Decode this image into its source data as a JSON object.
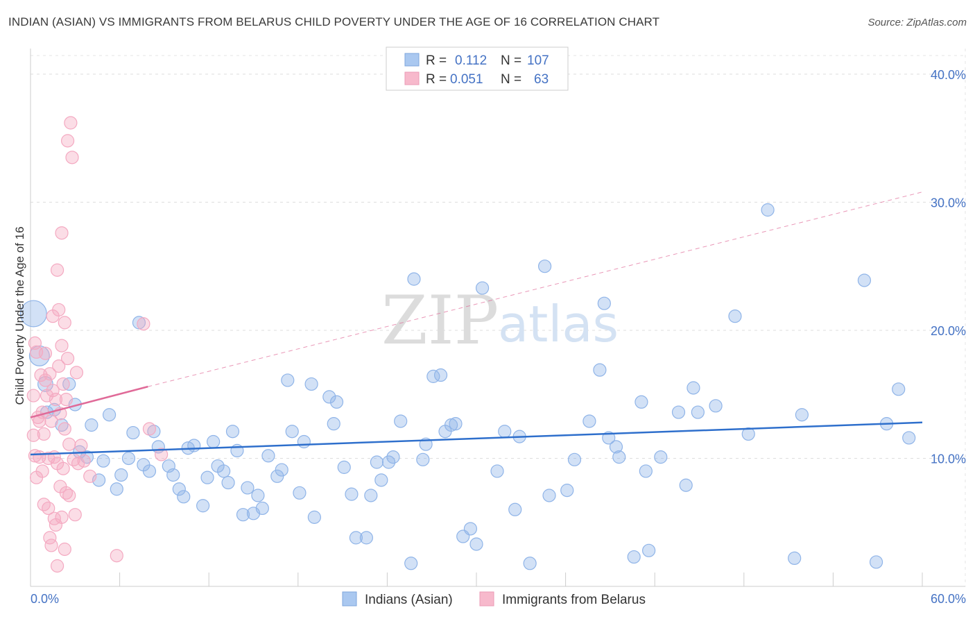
{
  "title": "INDIAN (ASIAN) VS IMMIGRANTS FROM BELARUS CHILD POVERTY UNDER THE AGE OF 16 CORRELATION CHART",
  "source": "Source: ZipAtlas.com",
  "watermark": {
    "zip": "ZIP",
    "atlas": "atlas"
  },
  "legend": {
    "rows": [
      {
        "r_label": "R =",
        "r_value": "0.112",
        "n_label": "N =",
        "n_value": "107",
        "color": "#aac8f0"
      },
      {
        "r_label": "R =",
        "r_value": "0.051",
        "n_label": "N =",
        "n_value": "63",
        "color": "#f7b9cc"
      }
    ]
  },
  "chart_data": {
    "type": "scatter",
    "ylabel": "Child Poverty Under the Age of 16",
    "xlim": [
      0,
      60
    ],
    "ylim": [
      0,
      42
    ],
    "x_tick_labels": [
      "0.0%",
      "60.0%"
    ],
    "y_ticks": [
      10,
      20,
      30,
      40
    ],
    "y_tick_labels": [
      "10.0%",
      "20.0%",
      "30.0%",
      "40.0%"
    ],
    "grid": true,
    "series": [
      {
        "name": "Indians (Asian)",
        "color": "#8fb4e8",
        "line_color": "#2e6fcc",
        "trend": {
          "x0": 0,
          "y0": 10.3,
          "x1": 60,
          "y1": 12.8
        },
        "points": [
          [
            0.2,
            21.3
          ],
          [
            0.6,
            18.0
          ],
          [
            1.0,
            15.8
          ],
          [
            1.1,
            13.6
          ],
          [
            1.6,
            13.8
          ],
          [
            2.1,
            12.6
          ],
          [
            2.6,
            15.8
          ],
          [
            3.0,
            14.2
          ],
          [
            3.3,
            10.5
          ],
          [
            3.8,
            10.1
          ],
          [
            4.1,
            12.6
          ],
          [
            4.6,
            8.3
          ],
          [
            4.9,
            9.8
          ],
          [
            5.3,
            13.4
          ],
          [
            5.8,
            7.6
          ],
          [
            6.1,
            8.7
          ],
          [
            6.6,
            10.0
          ],
          [
            6.9,
            12.0
          ],
          [
            7.3,
            20.6
          ],
          [
            7.6,
            9.5
          ],
          [
            8.0,
            9.0
          ],
          [
            8.3,
            12.1
          ],
          [
            8.6,
            10.9
          ],
          [
            9.3,
            9.4
          ],
          [
            9.6,
            8.7
          ],
          [
            10.0,
            7.6
          ],
          [
            10.3,
            7.0
          ],
          [
            10.6,
            10.8
          ],
          [
            11.0,
            11.0
          ],
          [
            11.6,
            6.3
          ],
          [
            11.9,
            8.5
          ],
          [
            12.3,
            11.3
          ],
          [
            12.6,
            9.4
          ],
          [
            13.0,
            9.0
          ],
          [
            13.3,
            8.1
          ],
          [
            13.6,
            12.1
          ],
          [
            13.9,
            10.6
          ],
          [
            14.3,
            5.6
          ],
          [
            14.6,
            7.7
          ],
          [
            15.0,
            5.7
          ],
          [
            15.3,
            7.1
          ],
          [
            15.6,
            6.1
          ],
          [
            16.0,
            10.2
          ],
          [
            16.6,
            8.6
          ],
          [
            16.9,
            9.1
          ],
          [
            17.3,
            16.1
          ],
          [
            17.6,
            12.1
          ],
          [
            18.1,
            7.3
          ],
          [
            18.4,
            11.3
          ],
          [
            18.9,
            15.8
          ],
          [
            19.1,
            5.4
          ],
          [
            20.1,
            14.8
          ],
          [
            20.4,
            12.7
          ],
          [
            20.6,
            14.4
          ],
          [
            21.1,
            9.3
          ],
          [
            21.6,
            7.2
          ],
          [
            21.9,
            3.8
          ],
          [
            22.6,
            3.8
          ],
          [
            22.9,
            7.1
          ],
          [
            23.3,
            9.7
          ],
          [
            23.6,
            8.3
          ],
          [
            24.1,
            9.7
          ],
          [
            24.4,
            10.1
          ],
          [
            24.9,
            12.9
          ],
          [
            25.6,
            1.8
          ],
          [
            25.8,
            24.0
          ],
          [
            26.4,
            9.9
          ],
          [
            26.6,
            11.1
          ],
          [
            27.1,
            16.4
          ],
          [
            27.6,
            16.5
          ],
          [
            27.9,
            12.1
          ],
          [
            28.3,
            12.6
          ],
          [
            28.6,
            12.7
          ],
          [
            29.1,
            3.9
          ],
          [
            29.6,
            4.5
          ],
          [
            30.0,
            3.3
          ],
          [
            30.4,
            23.3
          ],
          [
            31.4,
            9.0
          ],
          [
            31.9,
            12.1
          ],
          [
            32.6,
            6.0
          ],
          [
            32.9,
            11.7
          ],
          [
            33.6,
            1.8
          ],
          [
            34.6,
            25.0
          ],
          [
            34.9,
            7.1
          ],
          [
            36.1,
            7.5
          ],
          [
            36.6,
            9.9
          ],
          [
            37.6,
            12.9
          ],
          [
            38.3,
            16.9
          ],
          [
            38.6,
            22.1
          ],
          [
            38.9,
            11.6
          ],
          [
            39.4,
            10.9
          ],
          [
            39.6,
            10.1
          ],
          [
            40.6,
            2.3
          ],
          [
            41.1,
            14.4
          ],
          [
            41.4,
            9.0
          ],
          [
            41.6,
            2.8
          ],
          [
            42.4,
            10.1
          ],
          [
            43.6,
            13.6
          ],
          [
            44.1,
            7.9
          ],
          [
            44.6,
            15.5
          ],
          [
            44.9,
            13.6
          ],
          [
            46.1,
            14.1
          ],
          [
            47.4,
            21.1
          ],
          [
            48.3,
            11.9
          ],
          [
            49.6,
            29.4
          ],
          [
            51.4,
            2.2
          ],
          [
            51.9,
            13.4
          ],
          [
            56.1,
            23.9
          ],
          [
            56.9,
            1.9
          ],
          [
            57.6,
            12.7
          ],
          [
            58.4,
            15.4
          ],
          [
            59.1,
            11.6
          ]
        ],
        "point_sizes": {
          "0": 2.1,
          "1": 1.6,
          "2": 1.2
        }
      },
      {
        "name": "Immigrants from Belarus",
        "color": "#f4a9c1",
        "line_color": "#e06a98",
        "trend": {
          "x0": 0,
          "y0": 13.2,
          "x1": 7.9,
          "y1": 15.6
        },
        "trend_ext": {
          "x0": 7.9,
          "y0": 15.6,
          "x1": 60,
          "y1": 30.8
        },
        "points": [
          [
            0.2,
            14.9
          ],
          [
            0.2,
            11.8
          ],
          [
            0.3,
            10.2
          ],
          [
            0.3,
            19.0
          ],
          [
            0.4,
            18.3
          ],
          [
            0.4,
            8.5
          ],
          [
            0.5,
            13.2
          ],
          [
            0.6,
            12.9
          ],
          [
            0.6,
            10.1
          ],
          [
            0.7,
            16.5
          ],
          [
            0.8,
            9.0
          ],
          [
            0.8,
            13.6
          ],
          [
            0.9,
            11.9
          ],
          [
            0.9,
            6.4
          ],
          [
            1.0,
            18.2
          ],
          [
            1.0,
            16.1
          ],
          [
            1.1,
            14.9
          ],
          [
            1.2,
            10.0
          ],
          [
            1.2,
            6.1
          ],
          [
            1.3,
            3.8
          ],
          [
            1.3,
            16.6
          ],
          [
            1.4,
            12.9
          ],
          [
            1.4,
            3.2
          ],
          [
            1.5,
            15.3
          ],
          [
            1.5,
            21.1
          ],
          [
            1.6,
            10.1
          ],
          [
            1.6,
            5.3
          ],
          [
            1.7,
            14.6
          ],
          [
            1.7,
            4.8
          ],
          [
            1.8,
            9.6
          ],
          [
            1.8,
            24.7
          ],
          [
            1.8,
            1.6
          ],
          [
            1.9,
            21.6
          ],
          [
            1.9,
            17.2
          ],
          [
            2.0,
            13.5
          ],
          [
            2.0,
            7.8
          ],
          [
            2.1,
            27.6
          ],
          [
            2.1,
            18.8
          ],
          [
            2.1,
            5.4
          ],
          [
            2.2,
            15.8
          ],
          [
            2.2,
            9.2
          ],
          [
            2.3,
            20.6
          ],
          [
            2.3,
            12.3
          ],
          [
            2.3,
            2.9
          ],
          [
            2.4,
            7.3
          ],
          [
            2.4,
            14.6
          ],
          [
            2.5,
            17.8
          ],
          [
            2.5,
            34.8
          ],
          [
            2.6,
            7.1
          ],
          [
            2.6,
            11.1
          ],
          [
            2.7,
            36.2
          ],
          [
            2.8,
            33.5
          ],
          [
            2.9,
            9.9
          ],
          [
            3.0,
            5.6
          ],
          [
            3.1,
            16.7
          ],
          [
            3.2,
            9.6
          ],
          [
            3.4,
            11.0
          ],
          [
            3.6,
            9.8
          ],
          [
            4.0,
            8.6
          ],
          [
            5.8,
            2.4
          ],
          [
            7.6,
            20.5
          ],
          [
            8.0,
            12.3
          ],
          [
            8.8,
            10.3
          ]
        ]
      }
    ]
  },
  "bottom_legend": {
    "items": [
      {
        "label": "Indians (Asian)",
        "color": "#aac8f0"
      },
      {
        "label": "Immigrants from Belarus",
        "color": "#f7b9cc"
      }
    ]
  }
}
